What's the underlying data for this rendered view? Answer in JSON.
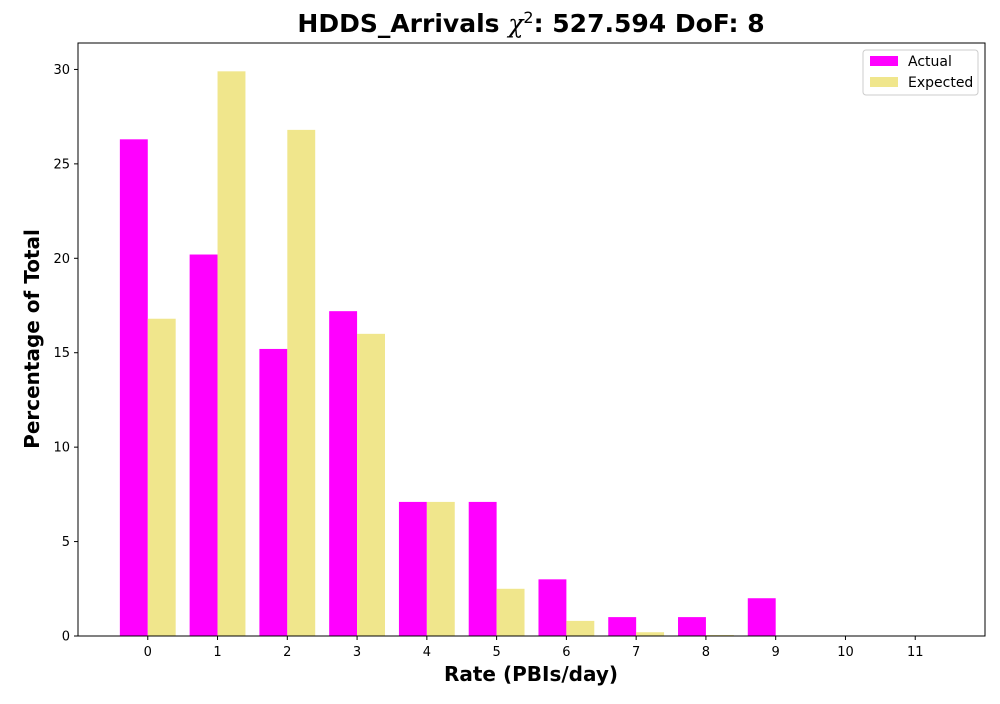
{
  "chart_data": {
    "type": "bar",
    "title": {
      "prefix": "HDDS_Arrivals ",
      "symbol": "χ",
      "superscript": "2",
      "suffix": ": 527.594 DoF: 8"
    },
    "xlabel": "Rate (PBIs/day)",
    "ylabel": "Percentage of Total",
    "categories": [
      "0",
      "1",
      "2",
      "3",
      "4",
      "5",
      "6",
      "7",
      "8",
      "9",
      "10",
      "11"
    ],
    "xlim": [
      -1,
      12
    ],
    "ylim": [
      0,
      31.4
    ],
    "yticks": [
      "0",
      "5",
      "10",
      "15",
      "20",
      "25",
      "30"
    ],
    "grid": false,
    "legend_position": "top-right",
    "series": [
      {
        "name": "Actual",
        "color": "#ff00ff",
        "values": [
          26.3,
          20.2,
          15.2,
          17.2,
          7.1,
          7.1,
          3.0,
          1.0,
          1.0,
          2.0,
          0,
          0
        ]
      },
      {
        "name": "Expected",
        "color": "#f0e68c",
        "values": [
          16.8,
          29.9,
          26.8,
          16.0,
          7.1,
          2.5,
          0.8,
          0.2,
          0.05,
          0,
          0,
          0
        ]
      }
    ]
  }
}
